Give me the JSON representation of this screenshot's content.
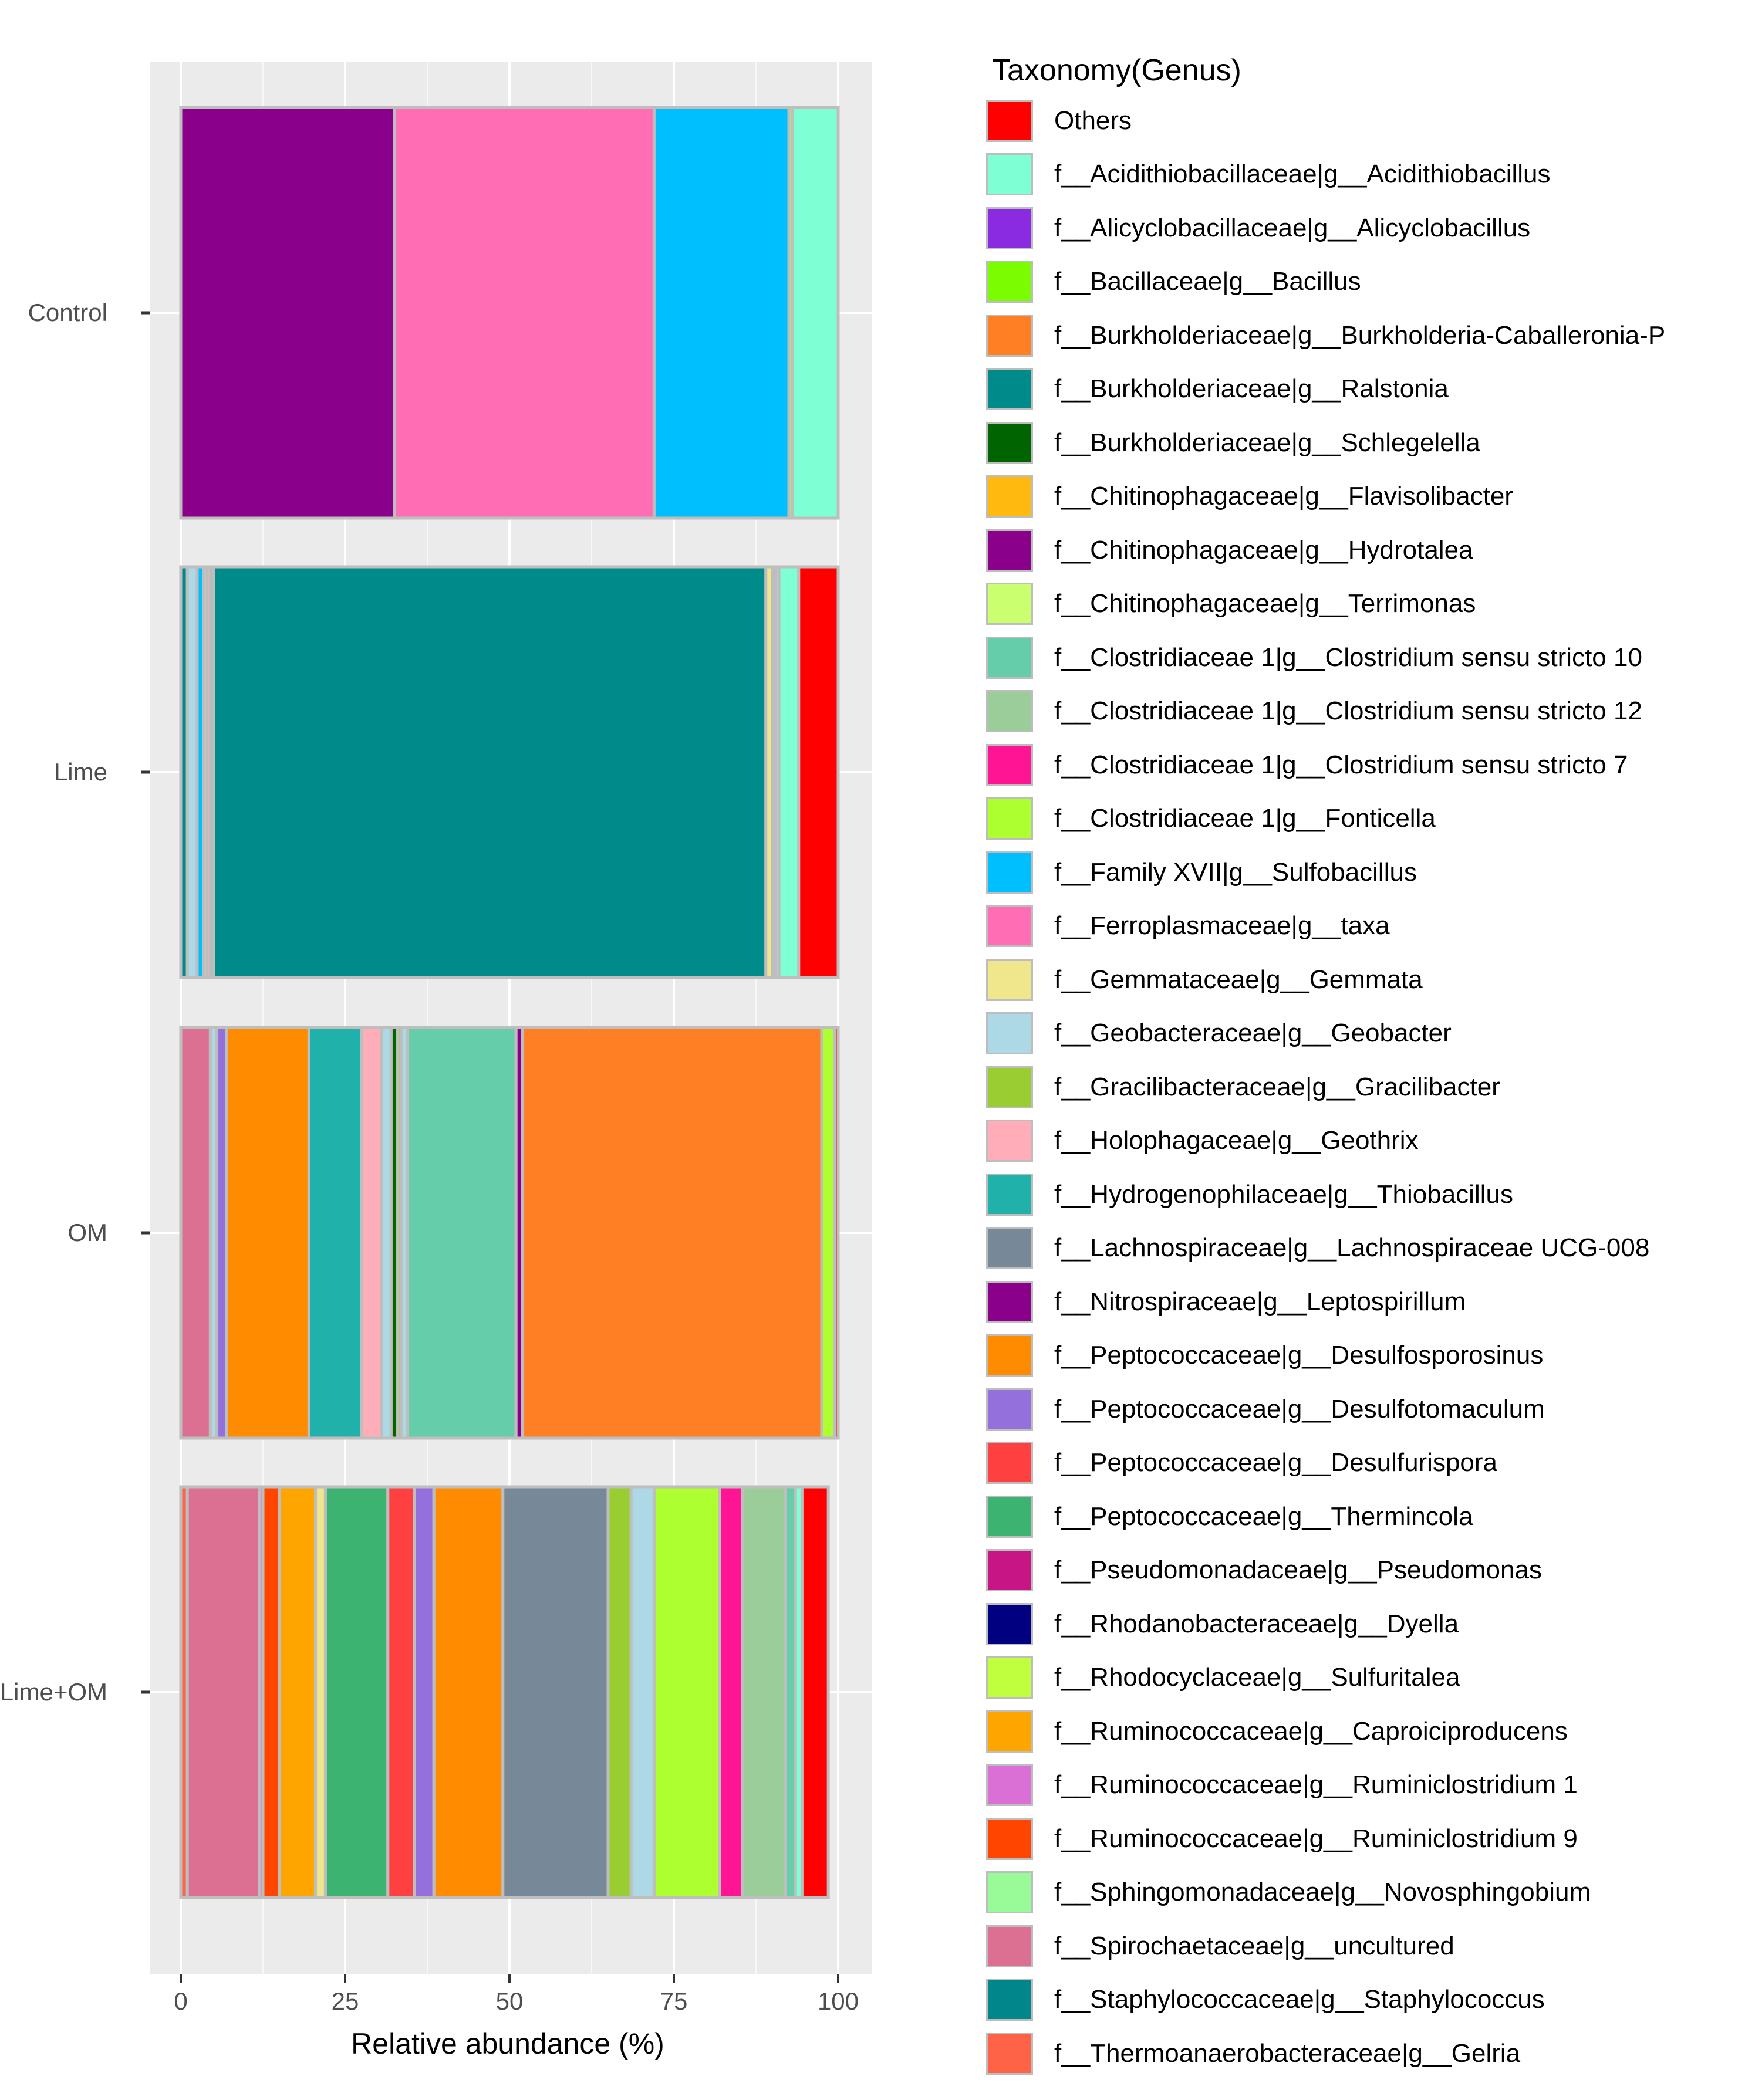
{
  "chart_data": {
    "type": "bar",
    "orientation": "horizontal",
    "stacked": true,
    "xlabel": "Relative abundance (%)",
    "ylabel": "",
    "xlim": [
      0,
      100
    ],
    "x_ticks": [
      0,
      25,
      50,
      75,
      100
    ],
    "categories": [
      "Control",
      "Lime",
      "OM",
      "Lime+OM"
    ],
    "legend_title": "Taxonomy(Genus)",
    "legend": [
      {
        "label": "Others",
        "color": "#FF0000"
      },
      {
        "label": "f__Acidithiobacillaceae|g__Acidithiobacillus",
        "color": "#7FFFD4"
      },
      {
        "label": "f__Alicyclobacillaceae|g__Alicyclobacillus",
        "color": "#8A2BE2"
      },
      {
        "label": "f__Bacillaceae|g__Bacillus",
        "color": "#7CFC00"
      },
      {
        "label": "f__Burkholderiaceae|g__Burkholderia-Caballeronia-P",
        "color": "#FF7F24"
      },
      {
        "label": "f__Burkholderiaceae|g__Ralstonia",
        "color": "#008B8B"
      },
      {
        "label": "f__Burkholderiaceae|g__Schlegelella",
        "color": "#006400"
      },
      {
        "label": "f__Chitinophagaceae|g__Flavisolibacter",
        "color": "#FFB90F"
      },
      {
        "label": "f__Chitinophagaceae|g__Hydrotalea",
        "color": "#8B008B"
      },
      {
        "label": "f__Chitinophagaceae|g__Terrimonas",
        "color": "#CAFF70"
      },
      {
        "label": "f__Clostridiaceae 1|g__Clostridium sensu stricto 10",
        "color": "#66CDAA"
      },
      {
        "label": "f__Clostridiaceae 1|g__Clostridium sensu stricto 12",
        "color": "#9BCD9B"
      },
      {
        "label": "f__Clostridiaceae 1|g__Clostridium sensu stricto 7",
        "color": "#FF1493"
      },
      {
        "label": "f__Clostridiaceae 1|g__Fonticella",
        "color": "#ADFF2F"
      },
      {
        "label": "f__Family XVII|g__Sulfobacillus",
        "color": "#00BFFF"
      },
      {
        "label": "f__Ferroplasmaceae|g__taxa",
        "color": "#FF6EB4"
      },
      {
        "label": "f__Gemmataceae|g__Gemmata",
        "color": "#F0E68C"
      },
      {
        "label": "f__Geobacteraceae|g__Geobacter",
        "color": "#ADD8E6"
      },
      {
        "label": "f__Gracilibacteraceae|g__Gracilibacter",
        "color": "#9ACD32"
      },
      {
        "label": "f__Holophagaceae|g__Geothrix",
        "color": "#FFAEB9"
      },
      {
        "label": "f__Hydrogenophilaceae|g__Thiobacillus",
        "color": "#20B2AA"
      },
      {
        "label": "f__Lachnospiraceae|g__Lachnospiraceae UCG-008",
        "color": "#778899"
      },
      {
        "label": "f__Nitrospiraceae|g__Leptospirillum",
        "color": "#8B008B"
      },
      {
        "label": "f__Peptococcaceae|g__Desulfosporosinus",
        "color": "#FF8C00"
      },
      {
        "label": "f__Peptococcaceae|g__Desulfotomaculum",
        "color": "#9370DB"
      },
      {
        "label": "f__Peptococcaceae|g__Desulfurispora",
        "color": "#FF4040"
      },
      {
        "label": "f__Peptococcaceae|g__Thermincola",
        "color": "#3CB371"
      },
      {
        "label": "f__Pseudomonadaceae|g__Pseudomonas",
        "color": "#C71585"
      },
      {
        "label": "f__Rhodanobacteraceae|g__Dyella",
        "color": "#000080"
      },
      {
        "label": "f__Rhodocyclaceae|g__Sulfuritalea",
        "color": "#BFFF3E"
      },
      {
        "label": "f__Ruminococcaceae|g__Caproiciproducens",
        "color": "#FFA500"
      },
      {
        "label": "f__Ruminococcaceae|g__Ruminiclostridium 1",
        "color": "#DA70D6"
      },
      {
        "label": "f__Ruminococcaceae|g__Ruminiclostridium 9",
        "color": "#FF4500"
      },
      {
        "label": "f__Sphingomonadaceae|g__Novosphingobium",
        "color": "#98FB98"
      },
      {
        "label": "f__Spirochaetaceae|g__uncultured",
        "color": "#DB7093"
      },
      {
        "label": "f__Staphylococcaceae|g__Staphylococcus",
        "color": "#00868B"
      },
      {
        "label": "f__Thermoanaerobacteraceae|g__Gelria",
        "color": "#FF6347"
      }
    ],
    "bars": [
      {
        "category": "Control",
        "segments": [
          {
            "taxon": "f__Chitinophagaceae|g__Hydrotalea",
            "value": 32.5
          },
          {
            "taxon": "f__Ferroplasmaceae|g__taxa",
            "value": 39.5
          },
          {
            "taxon": "f__Family XVII|g__Sulfobacillus",
            "value": 20.5
          },
          {
            "taxon": "f__Clostridiaceae 1|g__Fonticella",
            "value": 0.5
          },
          {
            "taxon": "f__Acidithiobacillaceae|g__Acidithiobacillus",
            "value": 7.0
          }
        ]
      },
      {
        "category": "Lime",
        "segments": [
          {
            "taxon": "f__Staphylococcaceae|g__Staphylococcus",
            "value": 1.0
          },
          {
            "taxon": "f__Geobacteraceae|g__Geobacter",
            "value": 1.5
          },
          {
            "taxon": "f__Family XVII|g__Sulfobacillus",
            "value": 1.0
          },
          {
            "taxon": "f__Gemmataceae|g__Gemmata",
            "value": 0.5
          },
          {
            "taxon": "f__Holophagaceae|g__Geothrix",
            "value": 0.5
          },
          {
            "taxon": "f__Hydrogenophilaceae|g__Thiobacillus",
            "value": 0.5
          },
          {
            "taxon": "f__Burkholderiaceae|g__Ralstonia",
            "value": 84.0
          },
          {
            "taxon": "f__Gemmataceae|g__Gemmata",
            "value": 1.0
          },
          {
            "taxon": "f__Peptococcaceae|g__Desulfotomaculum",
            "value": 0.5
          },
          {
            "taxon": "f__Geobacteraceae|g__Geobacter",
            "value": 0.5
          },
          {
            "taxon": "f__Acidithiobacillaceae|g__Acidithiobacillus",
            "value": 3.0
          },
          {
            "taxon": "Others",
            "value": 6.0
          }
        ]
      },
      {
        "category": "OM",
        "segments": [
          {
            "taxon": "f__Spirochaetaceae|g__uncultured",
            "value": 4.5
          },
          {
            "taxon": "f__Geobacteraceae|g__Geobacter",
            "value": 1.0
          },
          {
            "taxon": "f__Peptococcaceae|g__Desulfotomaculum",
            "value": 1.5
          },
          {
            "taxon": "f__Peptococcaceae|g__Desulfosporosinus",
            "value": 12.5
          },
          {
            "taxon": "f__Hydrogenophilaceae|g__Thiobacillus",
            "value": 8.0
          },
          {
            "taxon": "f__Holophagaceae|g__Geothrix",
            "value": 3.0
          },
          {
            "taxon": "f__Geobacteraceae|g__Geobacter",
            "value": 1.5
          },
          {
            "taxon": "f__Burkholderiaceae|g__Schlegelella",
            "value": 1.0
          },
          {
            "taxon": "f__Gracilibacteraceae|g__Gracilibacter",
            "value": 0.5
          },
          {
            "taxon": "f__Geobacteraceae|g__Geobacter",
            "value": 1.0
          },
          {
            "taxon": "f__Clostridiaceae 1|g__Clostridium sensu stricto 10",
            "value": 16.5
          },
          {
            "taxon": "f__Nitrospiraceae|g__Leptospirillum",
            "value": 1.0
          },
          {
            "taxon": "f__Burkholderiaceae|g__Burkholderia-Caballeronia-P",
            "value": 45.5
          },
          {
            "taxon": "f__Clostridiaceae 1|g__Fonticella",
            "value": 2.0
          },
          {
            "taxon": "Others",
            "value": 0.5
          }
        ]
      },
      {
        "category": "Lime+OM",
        "segments": [
          {
            "taxon": "f__Thermoanaerobacteraceae|g__Gelria",
            "value": 1.0
          },
          {
            "taxon": "f__Spirochaetaceae|g__uncultured",
            "value": 11.0
          },
          {
            "taxon": "f__Ruminococcaceae|g__Ruminiclostridium 1",
            "value": 0.5
          },
          {
            "taxon": "f__Ruminococcaceae|g__Ruminiclostridium 9",
            "value": 2.5
          },
          {
            "taxon": "f__Ruminococcaceae|g__Caproiciproducens",
            "value": 5.5
          },
          {
            "taxon": "f__Gemmataceae|g__Gemmata",
            "value": 1.5
          },
          {
            "taxon": "f__Peptococcaceae|g__Thermincola",
            "value": 9.5
          },
          {
            "taxon": "f__Peptococcaceae|g__Desulfurispora",
            "value": 4.0
          },
          {
            "taxon": "f__Peptococcaceae|g__Desulfotomaculum",
            "value": 3.0
          },
          {
            "taxon": "f__Peptococcaceae|g__Desulfosporosinus",
            "value": 10.5
          },
          {
            "taxon": "f__Lachnospiraceae|g__Lachnospiraceae UCG-008",
            "value": 16.0
          },
          {
            "taxon": "f__Gracilibacteraceae|g__Gracilibacter",
            "value": 3.5
          },
          {
            "taxon": "f__Geobacteraceae|g__Geobacter",
            "value": 3.5
          },
          {
            "taxon": "f__Clostridiaceae 1|g__Fonticella",
            "value": 10.0
          },
          {
            "taxon": "f__Clostridiaceae 1|g__Clostridium sensu stricto 7",
            "value": 3.5
          },
          {
            "taxon": "f__Clostridiaceae 1|g__Clostridium sensu stricto 12",
            "value": 6.5
          },
          {
            "taxon": "f__Clostridiaceae 1|g__Clostridium sensu stricto 10",
            "value": 1.5
          },
          {
            "taxon": "f__Acidithiobacillaceae|g__Acidithiobacillus",
            "value": 1.0
          },
          {
            "taxon": "Others",
            "value": 4.0
          }
        ]
      }
    ]
  }
}
